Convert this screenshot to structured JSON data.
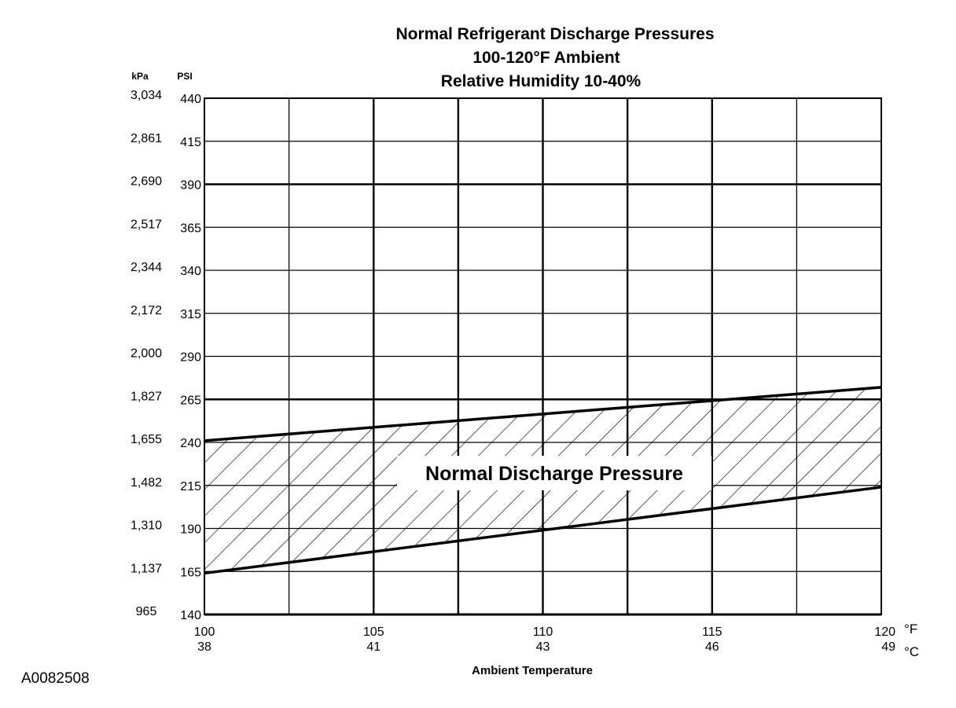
{
  "figure_id": "A0082508",
  "chart_data": {
    "type": "area",
    "title_lines": [
      "Normal  Refrigerant  Discharge  Pressures",
      "100-120°F Ambient",
      "Relative Humidity 10-40%"
    ],
    "xlabel": "Ambient Temperature",
    "x_unit_primary": "°F",
    "x_unit_secondary": "°C",
    "y_unit_primary": "PSI",
    "y_unit_secondary": "kPa",
    "xlim": [
      100,
      120
    ],
    "ylim": [
      140,
      440
    ],
    "x_ticks_primary": [
      "100",
      "105",
      "110",
      "115",
      "120"
    ],
    "x_ticks_secondary": [
      "38",
      "41",
      "43",
      "46",
      "49"
    ],
    "x_tick_values": [
      100,
      105,
      110,
      115,
      120
    ],
    "y_ticks_primary": [
      "440",
      "415",
      "390",
      "365",
      "340",
      "315",
      "290",
      "265",
      "240",
      "215",
      "190",
      "165",
      "140"
    ],
    "y_ticks_secondary": [
      "3,034",
      "2,861",
      "2,690",
      "2,517",
      "2,344",
      "2,172",
      "2,000",
      "1,827",
      "1,655",
      "1,482",
      "1,310",
      "1,137",
      "965"
    ],
    "y_tick_values": [
      440,
      415,
      390,
      365,
      340,
      315,
      290,
      265,
      240,
      215,
      190,
      165,
      140
    ],
    "x_grid_values": [
      100,
      102.5,
      105,
      107.5,
      110,
      112.5,
      115,
      117.5,
      120
    ],
    "x_grid_heavy": [
      105,
      107.5,
      110,
      112.5,
      115
    ],
    "y_grid_heavy": [
      390,
      265
    ],
    "grid": true,
    "series": [
      {
        "name": "Normal Discharge Pressure",
        "x": [
          100,
          120
        ],
        "lower": [
          164,
          214
        ],
        "upper": [
          241,
          272
        ]
      }
    ],
    "colors": {
      "ink": "#000000",
      "background": "#ffffff"
    }
  }
}
